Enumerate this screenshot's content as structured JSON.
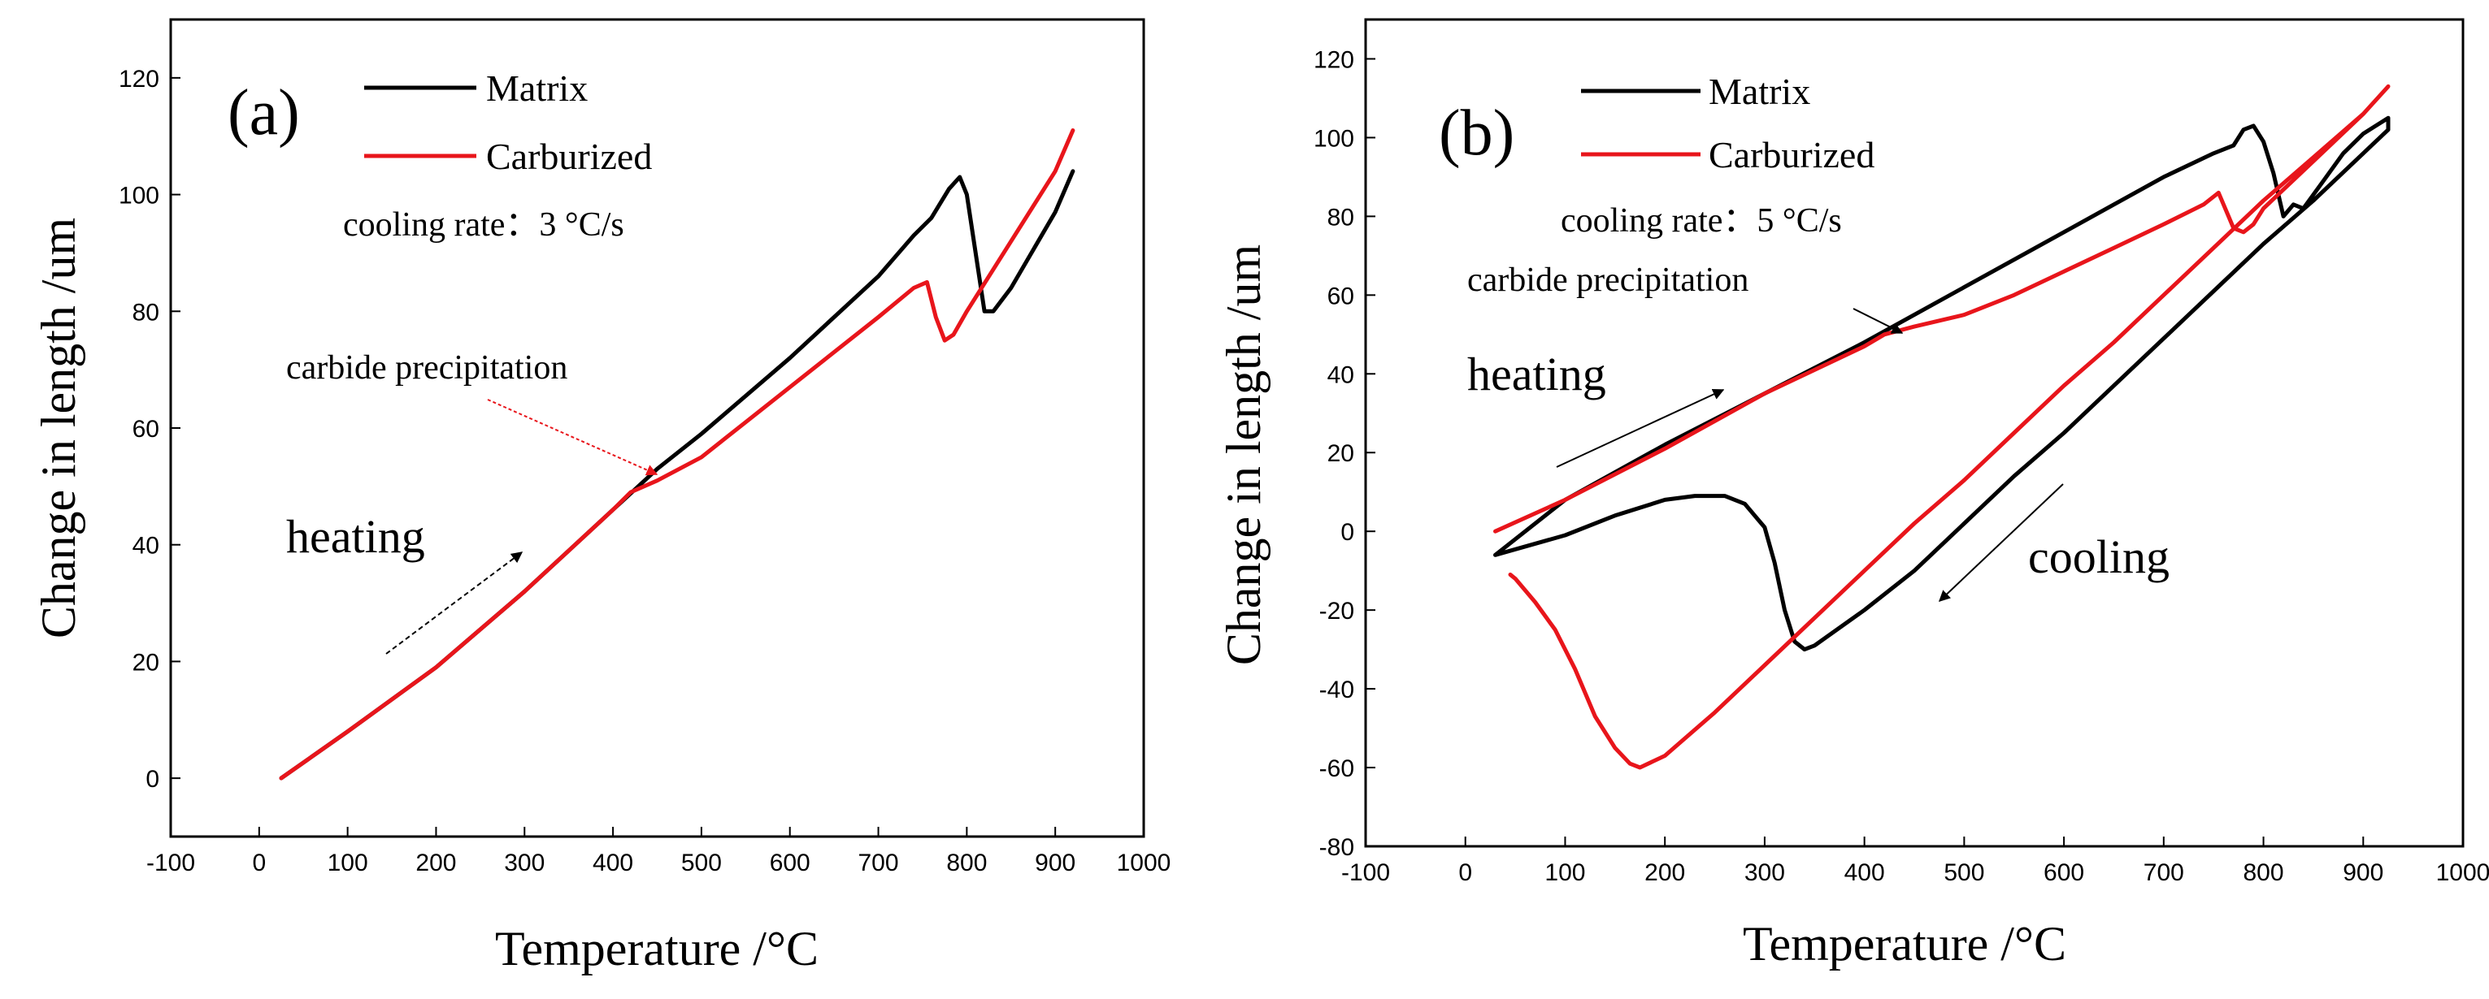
{
  "chart_data": [
    {
      "type": "line",
      "panel_label": "(a)",
      "xlabel": "Temperature /°C",
      "ylabel": "Change in length /um",
      "xlim": [
        -100,
        1000
      ],
      "ylim": [
        -10,
        130
      ],
      "x_ticks": [
        -100,
        0,
        100,
        200,
        300,
        400,
        500,
        600,
        700,
        800,
        900,
        1000
      ],
      "y_ticks": [
        0,
        20,
        40,
        60,
        80,
        100,
        120
      ],
      "grid": false,
      "legend_position": "top-left",
      "series": [
        {
          "name": "Matrix",
          "color": "#000000",
          "points": [
            [
              25,
              0
            ],
            [
              100,
              8
            ],
            [
              200,
              19
            ],
            [
              300,
              32
            ],
            [
              350,
              39
            ],
            [
              400,
              46
            ],
            [
              450,
              53
            ],
            [
              500,
              59
            ],
            [
              600,
              72
            ],
            [
              700,
              86
            ],
            [
              740,
              93
            ],
            [
              760,
              96
            ],
            [
              780,
              101
            ],
            [
              792,
              103
            ],
            [
              800,
              100
            ],
            [
              812,
              88
            ],
            [
              820,
              80
            ],
            [
              830,
              80
            ],
            [
              850,
              84
            ],
            [
              900,
              97
            ],
            [
              920,
              104
            ]
          ]
        },
        {
          "name": "Carburized",
          "color": "#e8151b",
          "points": [
            [
              25,
              0
            ],
            [
              100,
              8
            ],
            [
              200,
              19
            ],
            [
              300,
              32
            ],
            [
              350,
              39
            ],
            [
              400,
              46
            ],
            [
              420,
              49
            ],
            [
              450,
              51
            ],
            [
              500,
              55
            ],
            [
              550,
              61
            ],
            [
              600,
              67
            ],
            [
              650,
              73
            ],
            [
              700,
              79
            ],
            [
              740,
              84
            ],
            [
              755,
              85
            ],
            [
              765,
              79
            ],
            [
              775,
              75
            ],
            [
              785,
              76
            ],
            [
              800,
              80
            ],
            [
              850,
              92
            ],
            [
              900,
              104
            ],
            [
              920,
              111
            ]
          ]
        }
      ],
      "annotations": {
        "cooling_rate": "cooling rate：3 °C/s",
        "carbide": "carbide precipitation",
        "heating": "heating"
      }
    },
    {
      "type": "line",
      "panel_label": "(b)",
      "xlabel": "Temperature /°C",
      "ylabel": "Change in length /um",
      "xlim": [
        -100,
        1000
      ],
      "ylim": [
        -80,
        130
      ],
      "x_ticks": [
        -100,
        0,
        100,
        200,
        300,
        400,
        500,
        600,
        700,
        800,
        900,
        1000
      ],
      "y_ticks": [
        -80,
        -60,
        -40,
        -20,
        0,
        20,
        40,
        60,
        80,
        100,
        120
      ],
      "grid": false,
      "legend_position": "top-left",
      "series": [
        {
          "name": "Matrix",
          "color": "#000000",
          "points": [
            [
              30,
              -6
            ],
            [
              100,
              -1
            ],
            [
              150,
              4
            ],
            [
              200,
              8
            ],
            [
              230,
              9
            ],
            [
              260,
              9
            ],
            [
              280,
              7
            ],
            [
              300,
              1
            ],
            [
              310,
              -8
            ],
            [
              320,
              -20
            ],
            [
              330,
              -28
            ],
            [
              340,
              -30
            ],
            [
              350,
              -29
            ],
            [
              400,
              -20
            ],
            [
              450,
              -10
            ],
            [
              500,
              2
            ],
            [
              550,
              14
            ],
            [
              600,
              25
            ],
            [
              650,
              37
            ],
            [
              700,
              49
            ],
            [
              750,
              61
            ],
            [
              800,
              73
            ],
            [
              850,
              84
            ],
            [
              900,
              96
            ],
            [
              925,
              102
            ],
            [
              925,
              105
            ],
            [
              900,
              101
            ],
            [
              880,
              96
            ],
            [
              860,
              89
            ],
            [
              840,
              82
            ],
            [
              830,
              83
            ],
            [
              820,
              80
            ],
            [
              810,
              91
            ],
            [
              800,
              99
            ],
            [
              790,
              103
            ],
            [
              780,
              102
            ],
            [
              770,
              98
            ],
            [
              750,
              96
            ],
            [
              700,
              90
            ],
            [
              600,
              76
            ],
            [
              500,
              62
            ],
            [
              400,
              48
            ],
            [
              300,
              35
            ],
            [
              200,
              22
            ],
            [
              100,
              8
            ],
            [
              30,
              -6
            ]
          ]
        },
        {
          "name": "Carburized",
          "color": "#e8151b",
          "points": [
            [
              30,
              0
            ],
            [
              100,
              8
            ],
            [
              200,
              21
            ],
            [
              300,
              35
            ],
            [
              400,
              47
            ],
            [
              420,
              50
            ],
            [
              450,
              52
            ],
            [
              500,
              55
            ],
            [
              550,
              60
            ],
            [
              600,
              66
            ],
            [
              650,
              72
            ],
            [
              700,
              78
            ],
            [
              740,
              83
            ],
            [
              755,
              86
            ],
            [
              765,
              80
            ],
            [
              770,
              77
            ],
            [
              780,
              76
            ],
            [
              790,
              78
            ],
            [
              800,
              82
            ],
            [
              850,
              94
            ],
            [
              900,
              106
            ],
            [
              925,
              113
            ],
            [
              900,
              106
            ],
            [
              850,
              95
            ],
            [
              800,
              84
            ],
            [
              750,
              72
            ],
            [
              700,
              60
            ],
            [
              650,
              48
            ],
            [
              600,
              37
            ],
            [
              550,
              25
            ],
            [
              500,
              13
            ],
            [
              450,
              2
            ],
            [
              400,
              -10
            ],
            [
              350,
              -22
            ],
            [
              300,
              -34
            ],
            [
              250,
              -46
            ],
            [
              200,
              -57
            ],
            [
              175,
              -60
            ],
            [
              165,
              -59
            ],
            [
              150,
              -55
            ],
            [
              130,
              -47
            ],
            [
              110,
              -35
            ],
            [
              90,
              -25
            ],
            [
              70,
              -18
            ],
            [
              50,
              -12
            ],
            [
              45,
              -11
            ]
          ]
        }
      ],
      "annotations": {
        "cooling_rate": "cooling rate：5 °C/s",
        "carbide": "carbide precipitation",
        "heating": "heating",
        "cooling": "cooling"
      }
    }
  ]
}
